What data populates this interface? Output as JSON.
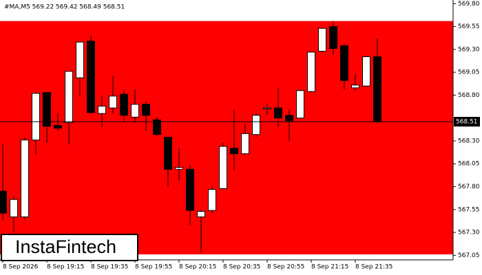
{
  "chart_data": {
    "type": "candlestick",
    "title": "#MA,M5 569.22 569.42 568.49 568.51",
    "logo": "InstaFintech",
    "categories": [
      "8 Sep 2026",
      null,
      null,
      null,
      "8 Sep 19:15",
      null,
      null,
      null,
      "8 Sep 19:35",
      null,
      null,
      null,
      "8 Sep 19:55",
      null,
      null,
      null,
      "8 Sep 20:15",
      null,
      null,
      null,
      "8 Sep 20:35",
      null,
      null,
      null,
      "8 Sep 20:55",
      null,
      null,
      null,
      "8 Sep 21:15",
      null,
      null,
      null,
      "8 Sep 21:35",
      null,
      null
    ],
    "open": [
      567.75,
      567.47,
      567.47,
      568.31,
      568.83,
      568.47,
      568.5,
      568.99,
      569.39,
      568.6,
      568.66,
      568.81,
      568.56,
      568.7,
      568.53,
      568.34,
      567.99,
      567.99,
      567.47,
      567.54,
      567.78,
      568.22,
      568.16,
      568.37,
      568.65,
      568.66,
      568.58,
      568.55,
      568.84,
      569.28,
      569.55,
      569.34,
      568.88,
      568.9,
      569.22
    ],
    "high": [
      568.26,
      567.7,
      568.34,
      568.83,
      568.83,
      568.6,
      569.06,
      569.38,
      569.45,
      568.79,
      569.01,
      568.86,
      568.86,
      568.73,
      568.56,
      568.35,
      568.22,
      568.04,
      567.55,
      567.81,
      568.28,
      568.64,
      568.49,
      568.6,
      568.7,
      568.88,
      568.64,
      568.85,
      569.27,
      569.54,
      569.61,
      569.36,
      569.03,
      569.22,
      569.42
    ],
    "low": [
      567.44,
      567.3,
      567.44,
      568.15,
      568.28,
      568.41,
      568.26,
      568.79,
      568.6,
      568.45,
      568.6,
      568.51,
      568.5,
      568.41,
      568.36,
      567.8,
      567.87,
      567.38,
      567.08,
      567.51,
      567.77,
      567.98,
      568.15,
      568.34,
      568.59,
      568.45,
      568.3,
      568.55,
      568.83,
      569.27,
      569.24,
      568.86,
      568.85,
      568.89,
      568.49
    ],
    "close": [
      567.51,
      567.66,
      568.31,
      568.82,
      568.46,
      568.44,
      569.06,
      569.38,
      568.61,
      568.68,
      568.79,
      568.58,
      568.7,
      568.58,
      568.37,
      567.99,
      568.01,
      567.54,
      567.53,
      567.77,
      568.24,
      568.16,
      568.38,
      568.58,
      568.66,
      568.55,
      568.52,
      568.85,
      569.27,
      569.53,
      569.31,
      568.96,
      568.91,
      569.22,
      568.51
    ],
    "up_color": "#ffffff",
    "down_color": "#000000",
    "zone": {
      "low": 567.06,
      "high": 569.61,
      "color": "#ff0000"
    },
    "last_price": 568.51,
    "ylim": [
      567.0,
      569.84
    ],
    "yticks": [
      {
        "value": 569.8,
        "label": "569.80"
      },
      569.55,
      {
        "value": 569.3,
        "label": "569.30"
      },
      569.05,
      {
        "value": 568.8,
        "label": "568.80"
      },
      {
        "value": 568.3,
        "label": "568.30"
      },
      568.05,
      {
        "value": 567.8,
        "label": "567.80"
      },
      567.55,
      {
        "value": 567.3,
        "label": "567.30"
      },
      567.05
    ]
  }
}
